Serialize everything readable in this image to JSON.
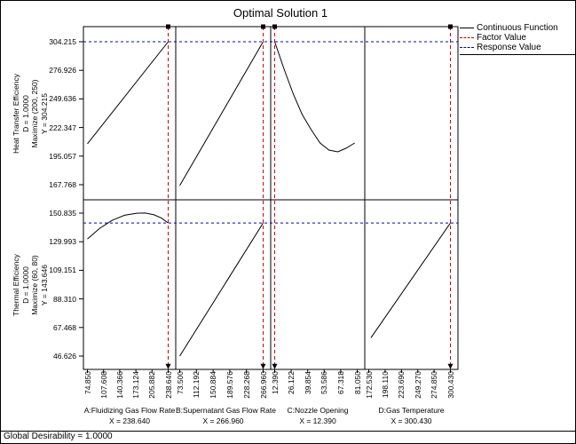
{
  "window": {
    "title": "Optimal Solution 1",
    "status": "Global Desirability = 1.0000"
  },
  "legend": {
    "items": [
      {
        "label": "Continuous Function",
        "color": "#000000",
        "style": "solid"
      },
      {
        "label": "Factor Value",
        "color": "#cc0000",
        "style": "dashed"
      },
      {
        "label": "Response Value",
        "color": "#0000cc",
        "style": "dashed"
      }
    ]
  },
  "chart_data": {
    "type": "line",
    "title": "Optimal Solution 1",
    "grid": false,
    "legend_position": "top-right",
    "colors": {
      "curve": "#000000",
      "factor_line": "#cc0000",
      "response_line": "#0000cc"
    },
    "rows": [
      {
        "name": "Heat Transfer Efficiency",
        "info_lines": [
          "Heat Transfer Efficiency",
          "D = 1.0000",
          "Maximize (200, 250)",
          "Y = 304.215"
        ],
        "response_value": 304.215,
        "ytick_labels": [
          "304.215",
          "276.926",
          "249.636",
          "222.347",
          "195.057",
          "167.768"
        ],
        "ytick_values": [
          304.215,
          276.926,
          249.636,
          222.347,
          195.057,
          167.768
        ]
      },
      {
        "name": "Thermal Efficiency",
        "info_lines": [
          "Thermal Efficiency",
          "D = 1.0000",
          "Maximize (60, 80)",
          "Y = 143.646"
        ],
        "response_value": 143.646,
        "ytick_labels": [
          "150.835",
          "129.993",
          "109.151",
          "88.310",
          "67.468",
          "46.626"
        ],
        "ytick_values": [
          150.835,
          129.993,
          109.151,
          88.31,
          67.468,
          46.626
        ]
      }
    ],
    "columns": [
      {
        "name": "A:Fluidizing Gas Flow Rate",
        "factor_value": 238.64,
        "factor_label": "X = 238.640",
        "xtick_labels": [
          "74.850",
          "107.608",
          "140.366",
          "173.124",
          "205.882",
          "238.640"
        ],
        "xtick_values": [
          74.85,
          107.608,
          140.366,
          173.124,
          205.882,
          238.64
        ]
      },
      {
        "name": "B:Supernatant Gas Flow Rate",
        "factor_value": 266.96,
        "factor_label": "X = 266.960",
        "xtick_labels": [
          "73.500",
          "112.192",
          "150.884",
          "189.576",
          "228.268",
          "266.960"
        ],
        "xtick_values": [
          73.5,
          112.192,
          150.884,
          189.576,
          228.268,
          266.96
        ]
      },
      {
        "name": "C:Nozzle Opening",
        "factor_value": 12.39,
        "factor_label": "X = 12.390",
        "xtick_labels": [
          "12.390",
          "26.122",
          "39.854",
          "53.586",
          "67.318",
          "81.050"
        ],
        "xtick_values": [
          12.39,
          26.122,
          39.854,
          53.586,
          67.318,
          81.05
        ]
      },
      {
        "name": "D:Gas Temperature",
        "factor_value": 300.43,
        "factor_label": "X = 300.430",
        "xtick_labels": [
          "172.530",
          "198.110",
          "223.690",
          "249.270",
          "274.850",
          "300.430"
        ],
        "xtick_values": [
          172.53,
          198.11,
          223.69,
          249.27,
          274.85,
          300.43
        ]
      }
    ],
    "curves": [
      [
        [
          [
            74.85,
            206.8
          ],
          [
            238.64,
            304.215
          ]
        ],
        [
          [
            73.5,
            166.9
          ],
          [
            266.96,
            304.215
          ]
        ],
        [
          [
            12.39,
            304.215
          ],
          [
            20.5,
            277.1
          ],
          [
            27.9,
            254.2
          ],
          [
            35.3,
            234.7
          ],
          [
            42.7,
            220.3
          ],
          [
            50.1,
            207.6
          ],
          [
            57.5,
            200.8
          ],
          [
            64.9,
            199.1
          ],
          [
            71.6,
            202.5
          ],
          [
            79.0,
            207.6
          ]
        ],
        null
      ],
      [
        [
          [
            74.85,
            132.0
          ],
          [
            100,
            139.8
          ],
          [
            125,
            145.6
          ],
          [
            150,
            149.3
          ],
          [
            175,
            150.8
          ],
          [
            192,
            150.9
          ],
          [
            210,
            149.6
          ],
          [
            225,
            147.2
          ],
          [
            238.64,
            143.646
          ]
        ],
        [
          [
            73.5,
            46.626
          ],
          [
            266.96,
            143.646
          ]
        ],
        null,
        [
          [
            176.0,
            60.0
          ],
          [
            300.43,
            143.646
          ]
        ]
      ]
    ]
  }
}
